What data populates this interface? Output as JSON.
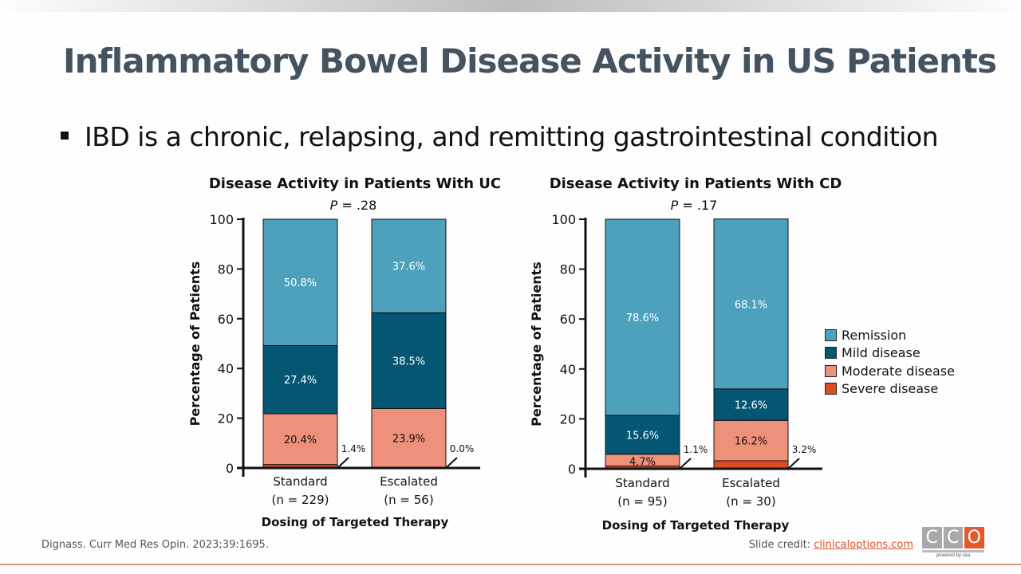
{
  "slide": {
    "title": "Inflammatory Bowel Disease Activity in US Patients",
    "bullet": "IBD is a chronic, relapsing, and remitting gastrointestinal condition",
    "reference": "Dignass. Curr Med Res Opin. 2023;39:1695.",
    "credit_label": "Slide credit: ",
    "credit_link": "clinicaloptions.com",
    "logo": {
      "letters": [
        "C",
        "C",
        "O"
      ],
      "tagline": "powered by cea"
    }
  },
  "colors": {
    "Remission": "#4ea1bd",
    "Mild disease": "#045672",
    "Moderate disease": "#ee917a",
    "Severe disease": "#dd4a24"
  },
  "legend": [
    "Remission",
    "Mild disease",
    "Moderate disease",
    "Severe disease"
  ],
  "chart_data": [
    {
      "type": "bar",
      "stacked": true,
      "title": "Disease Activity in Patients With UC",
      "subtitle_italic": "P",
      "subtitle_rest": " = .28",
      "xlabel": "Dosing of Targeted Therapy",
      "ylabel": "Percentage of Patients",
      "ylim": [
        0,
        100
      ],
      "yticks": [
        0,
        20,
        40,
        60,
        80,
        100
      ],
      "categories": [
        {
          "label": "Standard",
          "n": "(n = 229)"
        },
        {
          "label": "Escalated",
          "n": "(n = 56)"
        }
      ],
      "series": [
        {
          "name": "Severe disease",
          "values": [
            1.4,
            0.0
          ],
          "labels": [
            "1.4%",
            "0.0%"
          ],
          "callout": true
        },
        {
          "name": "Moderate disease",
          "values": [
            20.4,
            23.9
          ],
          "labels": [
            "20.4%",
            "23.9%"
          ]
        },
        {
          "name": "Mild disease",
          "values": [
            27.4,
            38.5
          ],
          "labels": [
            "27.4%",
            "38.5%"
          ]
        },
        {
          "name": "Remission",
          "values": [
            50.8,
            37.6
          ],
          "labels": [
            "50.8%",
            "37.6%"
          ]
        }
      ]
    },
    {
      "type": "bar",
      "stacked": true,
      "title": "Disease Activity in Patients With CD",
      "subtitle_italic": "P",
      "subtitle_rest": " = .17",
      "xlabel": "Dosing of Targeted Therapy",
      "ylabel": "Percentage of Patients",
      "ylim": [
        0,
        100
      ],
      "yticks": [
        0,
        20,
        40,
        60,
        80,
        100
      ],
      "categories": [
        {
          "label": "Standard",
          "n": "(n = 95)"
        },
        {
          "label": "Escalated",
          "n": "(n = 30)"
        }
      ],
      "series": [
        {
          "name": "Severe disease",
          "values": [
            1.1,
            3.2
          ],
          "labels": [
            "1.1%",
            "3.2%"
          ],
          "callout": true
        },
        {
          "name": "Moderate disease",
          "values": [
            4.7,
            16.2
          ],
          "labels": [
            "4.7%",
            "16.2%"
          ]
        },
        {
          "name": "Mild disease",
          "values": [
            15.6,
            12.6
          ],
          "labels": [
            "15.6%",
            "12.6%"
          ]
        },
        {
          "name": "Remission",
          "values": [
            78.6,
            68.1
          ],
          "labels": [
            "78.6%",
            "68.1%"
          ]
        }
      ]
    }
  ]
}
